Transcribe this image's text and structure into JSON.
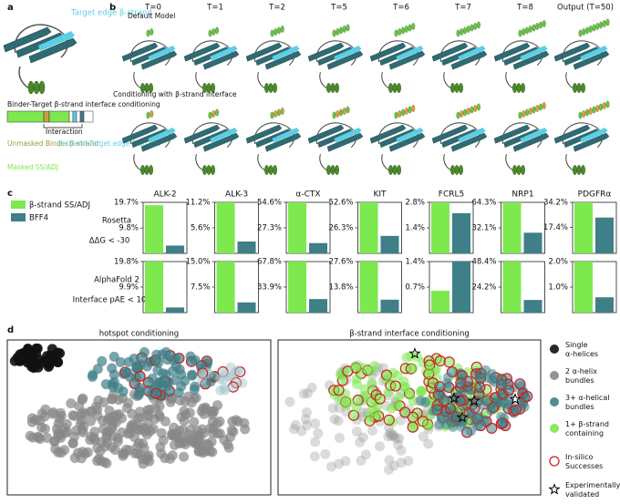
{
  "panel_a": {
    "label": "a",
    "target_label": "Target edge β-strand",
    "conditioning_title": "Binder-Target β-strand interface conditioning",
    "interaction": "Interaction",
    "legend": [
      {
        "text": "Unmasked Binder β-strand",
        "color": "#9a9a3a"
      },
      {
        "text": "β-strand Target edge β-strand",
        "color": "#5bcfe6"
      },
      {
        "text": "Masked SS/ADJ",
        "color": "#7ee84f"
      }
    ]
  },
  "panel_b": {
    "label": "b",
    "timesteps": [
      "T=0",
      "T=1",
      "T=2",
      "T=5",
      "T=6",
      "T=7",
      "T=8",
      "Output (T=50)"
    ],
    "rows": [
      "Default Model",
      "Conditioning with β-strand interface"
    ]
  },
  "panel_c_label": "c",
  "chart_data": {
    "type": "bar",
    "series": [
      {
        "name": "β-strand SS/ADJ",
        "color": "#7ee84f"
      },
      {
        "name": "BFF4",
        "color": "#3e7f88"
      }
    ],
    "metrics": [
      {
        "label": "Rosetta",
        "sublabel": "ΔΔG < -30"
      },
      {
        "label": "AlphaFold 2",
        "sublabel": "Interface pAE < 10"
      }
    ],
    "targets": [
      "ALK-2",
      "ALK-3",
      "α-CTX",
      "KIT",
      "FCRL5",
      "NRP1",
      "PDGFRα"
    ],
    "panels": [
      [
        {
          "ylim": [
            0,
            19.7
          ],
          "yticks": [
            {
              "value": 9.8,
              "label": "9.8%"
            },
            {
              "value": 19.7,
              "label": "19.7%"
            }
          ],
          "values": [
            18.6,
            3.0
          ]
        },
        {
          "ylim": [
            0,
            11.2
          ],
          "yticks": [
            {
              "value": 5.6,
              "label": "5.6%"
            },
            {
              "value": 11.2,
              "label": "11.2%"
            }
          ],
          "values": [
            11.2,
            2.6
          ]
        },
        {
          "ylim": [
            0,
            54.6
          ],
          "yticks": [
            {
              "value": 27.3,
              "label": "27.3%"
            },
            {
              "value": 54.6,
              "label": "54.6%"
            }
          ],
          "values": [
            54.6,
            11.0
          ]
        },
        {
          "ylim": [
            0,
            52.6
          ],
          "yticks": [
            {
              "value": 26.3,
              "label": "26.3%"
            },
            {
              "value": 52.6,
              "label": "52.6%"
            }
          ],
          "values": [
            52.6,
            18.0
          ]
        },
        {
          "ylim": [
            0,
            2.8
          ],
          "yticks": [
            {
              "value": 1.4,
              "label": "1.4%"
            },
            {
              "value": 2.8,
              "label": "2.8%"
            }
          ],
          "values": [
            2.8,
            2.2
          ]
        },
        {
          "ylim": [
            0,
            64.3
          ],
          "yticks": [
            {
              "value": 32.1,
              "label": "32.1%"
            },
            {
              "value": 64.3,
              "label": "64.3%"
            }
          ],
          "values": [
            64.3,
            26.0
          ]
        },
        {
          "ylim": [
            0,
            34.2
          ],
          "yticks": [
            {
              "value": 17.4,
              "label": "17.4%"
            },
            {
              "value": 34.2,
              "label": "34.2%"
            }
          ],
          "values": [
            34.2,
            24.0
          ]
        }
      ],
      [
        {
          "ylim": [
            0,
            19.8
          ],
          "yticks": [
            {
              "value": 9.9,
              "label": "9.9%"
            },
            {
              "value": 19.8,
              "label": "19.8%"
            }
          ],
          "values": [
            19.8,
            2.0
          ]
        },
        {
          "ylim": [
            0,
            15.0
          ],
          "yticks": [
            {
              "value": 7.5,
              "label": "7.5%"
            },
            {
              "value": 15.0,
              "label": "15.0%"
            }
          ],
          "values": [
            15.0,
            3.0
          ]
        },
        {
          "ylim": [
            0,
            67.8
          ],
          "yticks": [
            {
              "value": 33.9,
              "label": "33.9%"
            },
            {
              "value": 67.8,
              "label": "67.8%"
            }
          ],
          "values": [
            67.8,
            18.0
          ]
        },
        {
          "ylim": [
            0,
            27.6
          ],
          "yticks": [
            {
              "value": 13.8,
              "label": "13.8%"
            },
            {
              "value": 27.6,
              "label": "27.6%"
            }
          ],
          "values": [
            27.6,
            7.0
          ]
        },
        {
          "ylim": [
            0,
            1.4
          ],
          "yticks": [
            {
              "value": 0.7,
              "label": "0.7%"
            },
            {
              "value": 1.4,
              "label": "1.4%"
            }
          ],
          "values": [
            0.6,
            1.4
          ]
        },
        {
          "ylim": [
            0,
            48.4
          ],
          "yticks": [
            {
              "value": 24.2,
              "label": "24.2%"
            },
            {
              "value": 48.4,
              "label": "48.4%"
            }
          ],
          "values": [
            48.4,
            12.0
          ]
        },
        {
          "ylim": [
            0,
            2.0
          ],
          "yticks": [
            {
              "value": 1.0,
              "label": "1.0%"
            },
            {
              "value": 2.0,
              "label": "2.0%"
            }
          ],
          "values": [
            2.0,
            0.6
          ]
        }
      ]
    ]
  },
  "panel_d": {
    "label": "d",
    "titles": [
      "hotspot conditioning",
      "β-strand interface conditioning"
    ],
    "legend": [
      {
        "text": "Single α-helices",
        "color": "#111111"
      },
      {
        "text": "2 α-helix bundles",
        "color": "#888888"
      },
      {
        "text": "3+ α-helical bundles",
        "color": "#3e7f88"
      },
      {
        "text": "1+ β-strand containing",
        "color": "#7ee84f"
      },
      {
        "text": "In-silico Successes",
        "color": "#cc2222"
      },
      {
        "text": "Experimentally validated",
        "color": "#000000"
      }
    ]
  }
}
